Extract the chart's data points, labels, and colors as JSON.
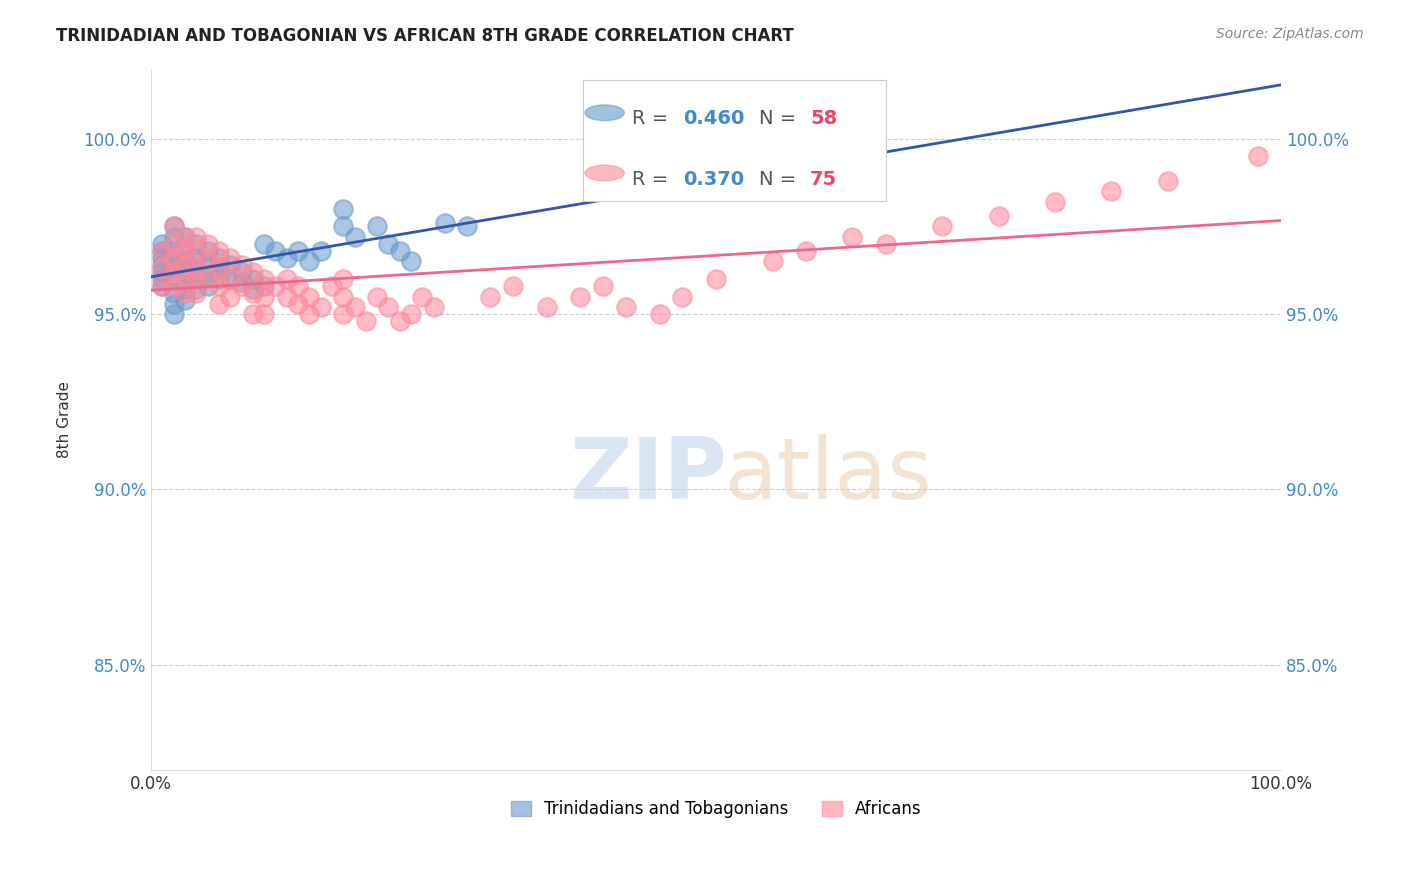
{
  "title": "TRINIDADIAN AND TOBAGONIAN VS AFRICAN 8TH GRADE CORRELATION CHART",
  "source": "Source: ZipAtlas.com",
  "ylabel": "8th Grade",
  "ytick_labels": [
    "100.0%",
    "95.0%",
    "90.0%",
    "85.0%"
  ],
  "ytick_values": [
    1.0,
    0.95,
    0.9,
    0.85
  ],
  "xlim": [
    0.0,
    1.0
  ],
  "ylim": [
    0.82,
    1.02
  ],
  "blue_R": 0.46,
  "blue_N": 58,
  "pink_R": 0.37,
  "pink_N": 75,
  "legend_label_blue": "Trinidadians and Tobagonians",
  "legend_label_pink": "Africans",
  "blue_color": "#6699CC",
  "pink_color": "#FF8899",
  "blue_line_color": "#3355AA",
  "pink_line_color": "#EE6688",
  "legend_r_color": "#4488CC",
  "legend_n_color": "#EE4466",
  "blue_x": [
    0.01,
    0.01,
    0.01,
    0.01,
    0.01,
    0.01,
    0.01,
    0.02,
    0.02,
    0.02,
    0.02,
    0.02,
    0.02,
    0.02,
    0.02,
    0.02,
    0.03,
    0.03,
    0.03,
    0.03,
    0.03,
    0.03,
    0.03,
    0.04,
    0.04,
    0.04,
    0.04,
    0.04,
    0.05,
    0.05,
    0.05,
    0.05,
    0.06,
    0.06,
    0.06,
    0.07,
    0.07,
    0.08,
    0.08,
    0.09,
    0.09,
    0.1,
    0.1,
    0.11,
    0.12,
    0.13,
    0.14,
    0.15,
    0.17,
    0.17,
    0.18,
    0.2,
    0.21,
    0.22,
    0.23,
    0.26,
    0.28,
    0.55
  ],
  "blue_y": [
    0.97,
    0.968,
    0.966,
    0.964,
    0.962,
    0.96,
    0.958,
    0.975,
    0.972,
    0.968,
    0.966,
    0.963,
    0.96,
    0.956,
    0.953,
    0.95,
    0.972,
    0.968,
    0.965,
    0.962,
    0.959,
    0.957,
    0.954,
    0.97,
    0.966,
    0.963,
    0.96,
    0.957,
    0.968,
    0.964,
    0.961,
    0.958,
    0.966,
    0.963,
    0.96,
    0.964,
    0.96,
    0.962,
    0.959,
    0.96,
    0.957,
    0.958,
    0.97,
    0.968,
    0.966,
    0.968,
    0.965,
    0.968,
    0.98,
    0.975,
    0.972,
    0.975,
    0.97,
    0.968,
    0.965,
    0.976,
    0.975,
    0.996
  ],
  "pink_x": [
    0.01,
    0.01,
    0.01,
    0.02,
    0.02,
    0.02,
    0.02,
    0.02,
    0.03,
    0.03,
    0.03,
    0.03,
    0.03,
    0.04,
    0.04,
    0.04,
    0.04,
    0.04,
    0.05,
    0.05,
    0.05,
    0.06,
    0.06,
    0.06,
    0.06,
    0.07,
    0.07,
    0.07,
    0.08,
    0.08,
    0.09,
    0.09,
    0.09,
    0.1,
    0.1,
    0.1,
    0.11,
    0.12,
    0.12,
    0.13,
    0.13,
    0.14,
    0.14,
    0.15,
    0.16,
    0.17,
    0.17,
    0.17,
    0.18,
    0.19,
    0.2,
    0.21,
    0.22,
    0.23,
    0.24,
    0.25,
    0.3,
    0.32,
    0.35,
    0.38,
    0.4,
    0.42,
    0.45,
    0.47,
    0.5,
    0.55,
    0.58,
    0.62,
    0.65,
    0.7,
    0.75,
    0.8,
    0.85,
    0.9,
    0.98
  ],
  "pink_y": [
    0.968,
    0.963,
    0.958,
    0.975,
    0.97,
    0.966,
    0.962,
    0.958,
    0.972,
    0.968,
    0.964,
    0.96,
    0.956,
    0.972,
    0.968,
    0.963,
    0.96,
    0.956,
    0.97,
    0.965,
    0.96,
    0.968,
    0.963,
    0.958,
    0.953,
    0.966,
    0.96,
    0.955,
    0.964,
    0.958,
    0.962,
    0.956,
    0.95,
    0.96,
    0.955,
    0.95,
    0.958,
    0.96,
    0.955,
    0.958,
    0.953,
    0.955,
    0.95,
    0.952,
    0.958,
    0.96,
    0.955,
    0.95,
    0.952,
    0.948,
    0.955,
    0.952,
    0.948,
    0.95,
    0.955,
    0.952,
    0.955,
    0.958,
    0.952,
    0.955,
    0.958,
    0.952,
    0.95,
    0.955,
    0.96,
    0.965,
    0.968,
    0.972,
    0.97,
    0.975,
    0.978,
    0.982,
    0.985,
    0.988,
    0.995
  ]
}
